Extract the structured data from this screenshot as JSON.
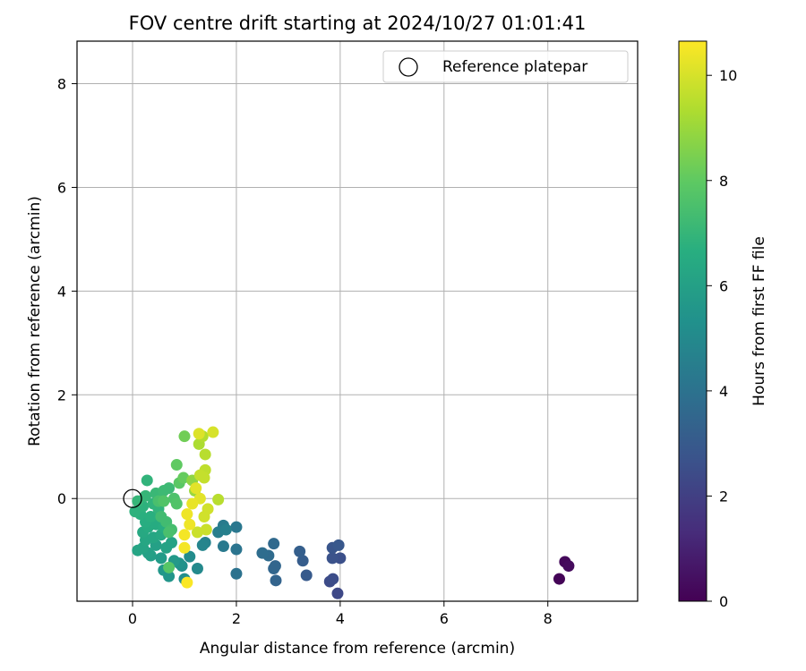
{
  "chart_data": {
    "type": "scatter",
    "title": "FOV centre drift starting at 2024/10/27 01:01:41",
    "xlabel": "Angular distance from reference (arcmin)",
    "ylabel": "Rotation from reference (arcmin)",
    "xlim": [
      -1.07,
      9.73
    ],
    "ylim": [
      -1.98,
      8.82
    ],
    "xticks": [
      0,
      2,
      4,
      6,
      8
    ],
    "yticks": [
      0,
      2,
      4,
      6,
      8
    ],
    "grid": true,
    "legend": {
      "placement": "top-right",
      "entries": [
        "Reference platepar"
      ]
    },
    "reference_point": {
      "name": "Reference platepar",
      "x": 0,
      "y": 0
    },
    "colorbar": {
      "label": "Hours from first FF file",
      "colormap": "viridis",
      "range": [
        0,
        10.65
      ],
      "ticks": [
        0,
        2,
        4,
        6,
        8,
        10
      ]
    },
    "series": [
      {
        "points": [
          {
            "x": 8.22,
            "y": -1.55,
            "h": 0.1
          },
          {
            "x": 8.33,
            "y": -1.22,
            "h": 0.2
          },
          {
            "x": 8.4,
            "y": -1.3,
            "h": 0.3
          },
          {
            "x": 3.95,
            "y": -1.83,
            "h": 2.3
          },
          {
            "x": 3.8,
            "y": -1.6,
            "h": 2.4
          },
          {
            "x": 3.86,
            "y": -1.55,
            "h": 2.5
          },
          {
            "x": 4.0,
            "y": -1.15,
            "h": 2.6
          },
          {
            "x": 3.85,
            "y": -1.15,
            "h": 2.7
          },
          {
            "x": 3.85,
            "y": -0.95,
            "h": 2.8
          },
          {
            "x": 3.97,
            "y": -0.9,
            "h": 2.9
          },
          {
            "x": 3.35,
            "y": -1.48,
            "h": 3.0
          },
          {
            "x": 3.28,
            "y": -1.2,
            "h": 3.1
          },
          {
            "x": 3.22,
            "y": -1.02,
            "h": 3.2
          },
          {
            "x": 2.76,
            "y": -1.58,
            "h": 3.4
          },
          {
            "x": 2.72,
            "y": -1.35,
            "h": 3.5
          },
          {
            "x": 2.75,
            "y": -1.3,
            "h": 3.5
          },
          {
            "x": 2.72,
            "y": -0.87,
            "h": 3.6
          },
          {
            "x": 2.62,
            "y": -1.1,
            "h": 3.7
          },
          {
            "x": 2.5,
            "y": -1.05,
            "h": 3.8
          },
          {
            "x": 2.0,
            "y": -1.45,
            "h": 4.0
          },
          {
            "x": 2.0,
            "y": -0.98,
            "h": 4.1
          },
          {
            "x": 2.0,
            "y": -0.55,
            "h": 4.2
          },
          {
            "x": 1.75,
            "y": -0.92,
            "h": 4.3
          },
          {
            "x": 1.75,
            "y": -0.52,
            "h": 4.4
          },
          {
            "x": 1.65,
            "y": -0.65,
            "h": 4.5
          },
          {
            "x": 1.8,
            "y": -0.6,
            "h": 4.6
          },
          {
            "x": 1.4,
            "y": -0.85,
            "h": 4.7
          },
          {
            "x": 1.35,
            "y": -0.9,
            "h": 4.8
          },
          {
            "x": 1.25,
            "y": -1.35,
            "h": 5.0
          },
          {
            "x": 1.1,
            "y": -1.12,
            "h": 5.1
          },
          {
            "x": 1.0,
            "y": -1.55,
            "h": 5.2
          },
          {
            "x": 0.95,
            "y": -1.3,
            "h": 5.3
          },
          {
            "x": 0.9,
            "y": -1.25,
            "h": 5.4
          },
          {
            "x": 0.7,
            "y": -1.5,
            "h": 5.5
          },
          {
            "x": 0.6,
            "y": -1.38,
            "h": 5.6
          },
          {
            "x": 0.8,
            "y": -1.2,
            "h": 5.7
          },
          {
            "x": 0.55,
            "y": -1.15,
            "h": 5.8
          },
          {
            "x": 0.35,
            "y": -1.1,
            "h": 5.9
          },
          {
            "x": 0.3,
            "y": -1.05,
            "h": 6.0
          },
          {
            "x": 0.45,
            "y": -0.9,
            "h": 6.0
          },
          {
            "x": 0.65,
            "y": -0.95,
            "h": 6.1
          },
          {
            "x": 0.75,
            "y": -0.85,
            "h": 6.1
          },
          {
            "x": 0.2,
            "y": -0.95,
            "h": 6.2
          },
          {
            "x": 0.1,
            "y": -1.0,
            "h": 6.2
          },
          {
            "x": 0.25,
            "y": -0.8,
            "h": 6.3
          },
          {
            "x": 0.4,
            "y": -0.75,
            "h": 6.3
          },
          {
            "x": 0.55,
            "y": -0.7,
            "h": 6.4
          },
          {
            "x": 0.2,
            "y": -0.65,
            "h": 6.4
          },
          {
            "x": 0.3,
            "y": -0.55,
            "h": 6.5
          },
          {
            "x": 0.45,
            "y": -0.5,
            "h": 6.5
          },
          {
            "x": 0.6,
            "y": -0.55,
            "h": 6.6
          },
          {
            "x": 0.25,
            "y": -0.45,
            "h": 6.6
          },
          {
            "x": 0.35,
            "y": -0.35,
            "h": 6.7
          },
          {
            "x": 0.15,
            "y": -0.3,
            "h": 6.7
          },
          {
            "x": 0.05,
            "y": -0.25,
            "h": 6.8
          },
          {
            "x": 0.2,
            "y": -0.15,
            "h": 6.8
          },
          {
            "x": 0.4,
            "y": -0.1,
            "h": 6.9
          },
          {
            "x": 0.5,
            "y": -0.2,
            "h": 6.9
          },
          {
            "x": 0.28,
            "y": 0.35,
            "h": 6.9
          },
          {
            "x": 0.1,
            "y": -0.05,
            "h": 7.0
          },
          {
            "x": 0.25,
            "y": 0.05,
            "h": 7.0
          },
          {
            "x": 0.45,
            "y": 0.1,
            "h": 7.1
          },
          {
            "x": 0.6,
            "y": 0.15,
            "h": 7.2
          },
          {
            "x": 0.7,
            "y": 0.2,
            "h": 7.2
          },
          {
            "x": 0.55,
            "y": -0.35,
            "h": 7.3
          },
          {
            "x": 0.65,
            "y": -0.45,
            "h": 7.3
          },
          {
            "x": 0.75,
            "y": -0.6,
            "h": 7.4
          },
          {
            "x": 0.7,
            "y": -0.65,
            "h": 7.5
          },
          {
            "x": 0.5,
            "y": -0.05,
            "h": 7.5
          },
          {
            "x": 0.8,
            "y": 0.0,
            "h": 7.6
          },
          {
            "x": 0.85,
            "y": -0.1,
            "h": 7.7
          },
          {
            "x": 0.6,
            "y": -0.05,
            "h": 7.7
          },
          {
            "x": 0.7,
            "y": -1.33,
            "h": 7.8
          },
          {
            "x": 0.9,
            "y": 0.3,
            "h": 7.9
          },
          {
            "x": 0.85,
            "y": 0.65,
            "h": 8.0
          },
          {
            "x": 0.98,
            "y": 0.4,
            "h": 8.1
          },
          {
            "x": 1.0,
            "y": 1.2,
            "h": 8.3
          },
          {
            "x": 1.15,
            "y": 0.35,
            "h": 8.8
          },
          {
            "x": 1.2,
            "y": 0.15,
            "h": 9.0
          },
          {
            "x": 1.28,
            "y": 1.05,
            "h": 9.3
          },
          {
            "x": 1.35,
            "y": 1.2,
            "h": 9.4
          },
          {
            "x": 1.4,
            "y": 0.85,
            "h": 9.5
          },
          {
            "x": 1.65,
            "y": -0.02,
            "h": 9.5
          },
          {
            "x": 1.4,
            "y": 0.55,
            "h": 9.6
          },
          {
            "x": 1.38,
            "y": 0.4,
            "h": 9.7
          },
          {
            "x": 1.3,
            "y": 0.45,
            "h": 9.7
          },
          {
            "x": 1.42,
            "y": -0.6,
            "h": 9.8
          },
          {
            "x": 1.25,
            "y": -0.65,
            "h": 9.8
          },
          {
            "x": 1.45,
            "y": -0.2,
            "h": 9.9
          },
          {
            "x": 1.38,
            "y": -0.35,
            "h": 9.9
          },
          {
            "x": 1.55,
            "y": 1.28,
            "h": 10.0
          },
          {
            "x": 1.28,
            "y": 1.25,
            "h": 10.1
          },
          {
            "x": 1.3,
            "y": 0.0,
            "h": 10.2
          },
          {
            "x": 1.22,
            "y": 0.2,
            "h": 10.2
          },
          {
            "x": 1.15,
            "y": -0.1,
            "h": 10.3
          },
          {
            "x": 1.05,
            "y": -0.3,
            "h": 10.4
          },
          {
            "x": 1.1,
            "y": -0.5,
            "h": 10.4
          },
          {
            "x": 1.0,
            "y": -0.7,
            "h": 10.5
          },
          {
            "x": 1.0,
            "y": -0.95,
            "h": 10.5
          },
          {
            "x": 1.05,
            "y": -1.62,
            "h": 10.6
          }
        ]
      }
    ]
  }
}
